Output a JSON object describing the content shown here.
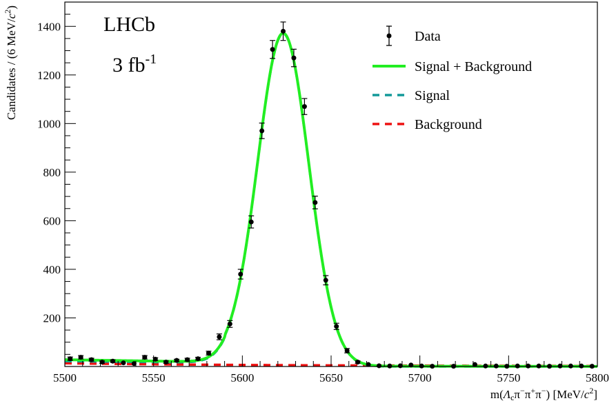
{
  "chart_data": {
    "type": "scatter",
    "xlabel_parts": [
      "m(",
      "Λ",
      "c",
      "π",
      "−",
      "π",
      "+",
      "π",
      "−",
      ") [MeV/",
      "c",
      "2",
      "]"
    ],
    "ylabel_parts": [
      "Candidates / (6 MeV/",
      "c",
      "2",
      ")"
    ],
    "xlim": [
      5500,
      5800
    ],
    "ylim": [
      0,
      1500
    ],
    "x_ticks": [
      5500,
      5550,
      5600,
      5650,
      5700,
      5750,
      5800
    ],
    "y_ticks": [
      200,
      400,
      600,
      800,
      1000,
      1200,
      1400
    ],
    "annotations": {
      "experiment": "LHCb",
      "lumi_main": "3 fb",
      "lumi_sup": "-1"
    },
    "legend": {
      "placement": "top-right",
      "entries": [
        {
          "label": "Data",
          "style": "marker"
        },
        {
          "label": "Signal + Background",
          "style": "solid",
          "color": "#22ee22"
        },
        {
          "label": "Signal",
          "style": "dashed",
          "color": "#129999"
        },
        {
          "label": "Background",
          "style": "dashed",
          "color": "#ee1111"
        }
      ]
    },
    "data_points": {
      "x": [
        5503,
        5509,
        5515,
        5521,
        5527,
        5533,
        5539,
        5545,
        5551,
        5557,
        5563,
        5569,
        5575,
        5581,
        5587,
        5593,
        5599,
        5605,
        5611,
        5617,
        5623,
        5629,
        5635,
        5641,
        5647,
        5653,
        5659,
        5665,
        5671,
        5677,
        5683,
        5689,
        5695,
        5701,
        5707,
        5719,
        5731,
        5737,
        5743,
        5749,
        5755,
        5761,
        5767,
        5773,
        5779,
        5785,
        5791,
        5797
      ],
      "y": [
        32,
        38,
        28,
        18,
        22,
        15,
        12,
        38,
        30,
        18,
        25,
        28,
        32,
        55,
        122,
        175,
        380,
        595,
        970,
        1305,
        1380,
        1270,
        1070,
        675,
        355,
        165,
        65,
        18,
        8,
        3,
        2,
        3,
        6,
        2,
        1,
        1,
        8,
        2,
        2,
        1,
        2,
        2,
        2,
        1,
        2,
        2,
        2,
        1
      ],
      "yerr": [
        7,
        7,
        6,
        5,
        5,
        4,
        4,
        7,
        6,
        5,
        5,
        6,
        6,
        8,
        12,
        14,
        20,
        25,
        32,
        37,
        38,
        36,
        33,
        26,
        19,
        13,
        9,
        5,
        3,
        2,
        2,
        2,
        3,
        2,
        1,
        1,
        3,
        2,
        2,
        1,
        2,
        2,
        2,
        1,
        2,
        2,
        2,
        1
      ]
    },
    "model": {
      "signal": {
        "amplitude": 1370,
        "mean": 5623,
        "sigma": 14.5
      },
      "background": {
        "start_value": 22,
        "end_value": 2,
        "decay_scale": 120
      },
      "low_tail": {
        "amplitude": 22,
        "cutoff": 5590
      }
    },
    "colors": {
      "total": "#22ee22",
      "signal": "#129999",
      "background": "#ee1111",
      "data": "#000000"
    }
  }
}
